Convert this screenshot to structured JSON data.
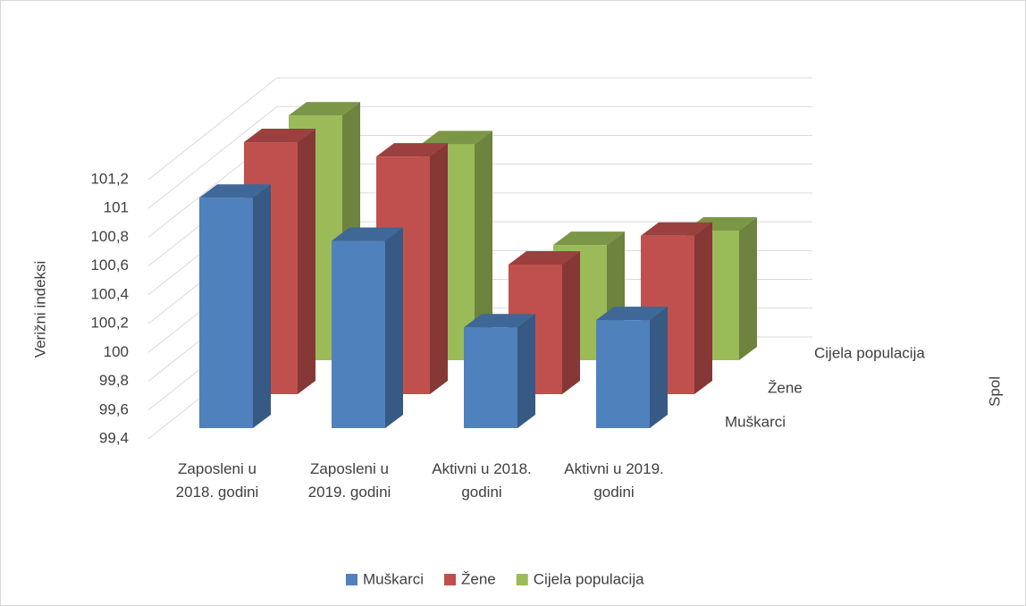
{
  "chart_data": {
    "type": "bar3d",
    "categories": [
      "Zaposleni u 2018. godini",
      "Zaposleni u 2019. godini",
      "Aktivni u 2018. godini",
      "Aktivni u 2019. godini"
    ],
    "series": [
      {
        "name": "Muškarci",
        "color": "#4f81bd",
        "values": [
          101.0,
          100.7,
          100.1,
          100.15
        ]
      },
      {
        "name": "Žene",
        "color": "#c0504d",
        "values": [
          101.15,
          101.05,
          100.3,
          100.5
        ]
      },
      {
        "name": "Cijela populacija",
        "color": "#9bbb59",
        "values": [
          101.1,
          100.9,
          100.2,
          100.3
        ]
      }
    ],
    "ylabel": "Verižni indeksi",
    "zlabel": "Spol",
    "ylim": [
      99.4,
      101.2
    ],
    "yticks": [
      {
        "value": 99.4,
        "label": "99,4"
      },
      {
        "value": 99.6,
        "label": "99,6"
      },
      {
        "value": 99.8,
        "label": "99,8"
      },
      100,
      {
        "value": 100.2,
        "label": "100,2"
      },
      {
        "value": 100.4,
        "label": "100,4"
      },
      {
        "value": 100.6,
        "label": "100,6"
      },
      {
        "value": 100.8,
        "label": "100,8"
      },
      101,
      {
        "value": 101.2,
        "label": "101,2"
      }
    ],
    "grid": true,
    "legend": "bottom"
  }
}
